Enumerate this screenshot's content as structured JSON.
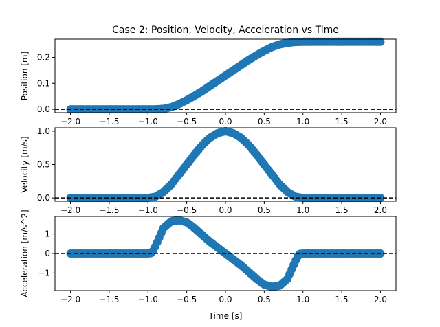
{
  "title": "Case 2: Position, Velocity, Acceleration vs Time",
  "colors": {
    "series": "#1f77b4",
    "zero_line": "#000000",
    "spine": "#000000"
  },
  "chart_data": [
    {
      "type": "scatter",
      "title": "Case 2: Position, Velocity, Acceleration vs Time",
      "xlabel": "",
      "ylabel": "Position [m]",
      "xlim": [
        -2.2,
        2.2
      ],
      "ylim": [
        -0.013,
        0.27
      ],
      "xticks": [
        -2.0,
        -1.5,
        -1.0,
        -0.5,
        0.0,
        0.5,
        1.0,
        1.5,
        2.0
      ],
      "xtick_labels": [
        "−2.0",
        "−1.5",
        "−1.0",
        "−0.5",
        "0.0",
        "0.5",
        "1.0",
        "1.5",
        "2.0"
      ],
      "yticks": [
        0.0,
        0.1,
        0.2
      ],
      "ytick_labels": [
        "0.0",
        "0.1",
        "0.2"
      ],
      "zero_line": 0,
      "grid": false,
      "series": [
        {
          "x": [
            -2.0,
            -1.5,
            -1.0,
            -0.9,
            -0.8,
            -0.7,
            -0.6,
            -0.5,
            -0.4,
            -0.3,
            -0.2,
            -0.1,
            0.0,
            0.1,
            0.2,
            0.3,
            0.4,
            0.5,
            0.6,
            0.7,
            0.8,
            0.9,
            1.0,
            1.5,
            2.0
          ],
          "y": [
            0.0,
            0.0,
            0.0,
            0.0,
            0.002,
            0.008,
            0.02,
            0.035,
            0.052,
            0.07,
            0.09,
            0.11,
            0.13,
            0.15,
            0.17,
            0.19,
            0.208,
            0.225,
            0.24,
            0.25,
            0.256,
            0.259,
            0.26,
            0.26,
            0.26
          ]
        }
      ]
    },
    {
      "type": "scatter",
      "title": "",
      "xlabel": "",
      "ylabel": "Velocity [m/s]",
      "xlim": [
        -2.2,
        2.2
      ],
      "ylim": [
        -0.05,
        1.05
      ],
      "xticks": [
        -2.0,
        -1.5,
        -1.0,
        -0.5,
        0.0,
        0.5,
        1.0,
        1.5,
        2.0
      ],
      "xtick_labels": [
        "−2.0",
        "−1.5",
        "−1.0",
        "−0.5",
        "0.0",
        "0.5",
        "1.0",
        "1.5",
        "2.0"
      ],
      "yticks": [
        0.0,
        0.5,
        1.0
      ],
      "ytick_labels": [
        "0.0",
        "0.5",
        "1.0"
      ],
      "zero_line": 0,
      "grid": false,
      "series": [
        {
          "x": [
            -2.0,
            -1.5,
            -1.0,
            -0.9,
            -0.8,
            -0.7,
            -0.6,
            -0.5,
            -0.4,
            -0.3,
            -0.2,
            -0.1,
            0.0,
            0.1,
            0.2,
            0.3,
            0.4,
            0.5,
            0.6,
            0.7,
            0.8,
            0.9,
            1.0,
            1.5,
            2.0
          ],
          "y": [
            0.0,
            0.0,
            0.0,
            0.02,
            0.09,
            0.2,
            0.35,
            0.5,
            0.65,
            0.79,
            0.9,
            0.97,
            1.0,
            0.97,
            0.9,
            0.79,
            0.65,
            0.5,
            0.35,
            0.2,
            0.09,
            0.02,
            0.0,
            0.0,
            0.0
          ]
        }
      ]
    },
    {
      "type": "scatter",
      "title": "",
      "xlabel": "Time [s]",
      "ylabel": "Acceleration [m/s^2]",
      "xlim": [
        -2.2,
        2.2
      ],
      "ylim": [
        -1.9,
        1.9
      ],
      "xticks": [
        -2.0,
        -1.5,
        -1.0,
        -0.5,
        0.0,
        0.5,
        1.0,
        1.5,
        2.0
      ],
      "xtick_labels": [
        "−2.0",
        "−1.5",
        "−1.0",
        "−0.5",
        "0.0",
        "0.5",
        "1.0",
        "1.5",
        "2.0"
      ],
      "yticks": [
        -1,
        0,
        1
      ],
      "ytick_labels": [
        "−1",
        "0",
        "1"
      ],
      "zero_line": 0,
      "grid": false,
      "series": [
        {
          "x": [
            -2.0,
            -1.5,
            -1.0,
            -0.95,
            -0.9,
            -0.8,
            -0.7,
            -0.6,
            -0.5,
            -0.4,
            -0.3,
            -0.2,
            -0.1,
            0.0,
            0.1,
            0.2,
            0.3,
            0.4,
            0.5,
            0.6,
            0.7,
            0.8,
            0.9,
            0.95,
            1.0,
            1.5,
            2.0
          ],
          "y": [
            0.0,
            0.0,
            0.0,
            0.02,
            0.4,
            1.3,
            1.65,
            1.7,
            1.6,
            1.3,
            0.95,
            0.6,
            0.3,
            0.0,
            -0.3,
            -0.6,
            -0.95,
            -1.3,
            -1.6,
            -1.7,
            -1.65,
            -1.3,
            -0.4,
            -0.02,
            0.0,
            0.0,
            0.0
          ]
        }
      ]
    }
  ]
}
